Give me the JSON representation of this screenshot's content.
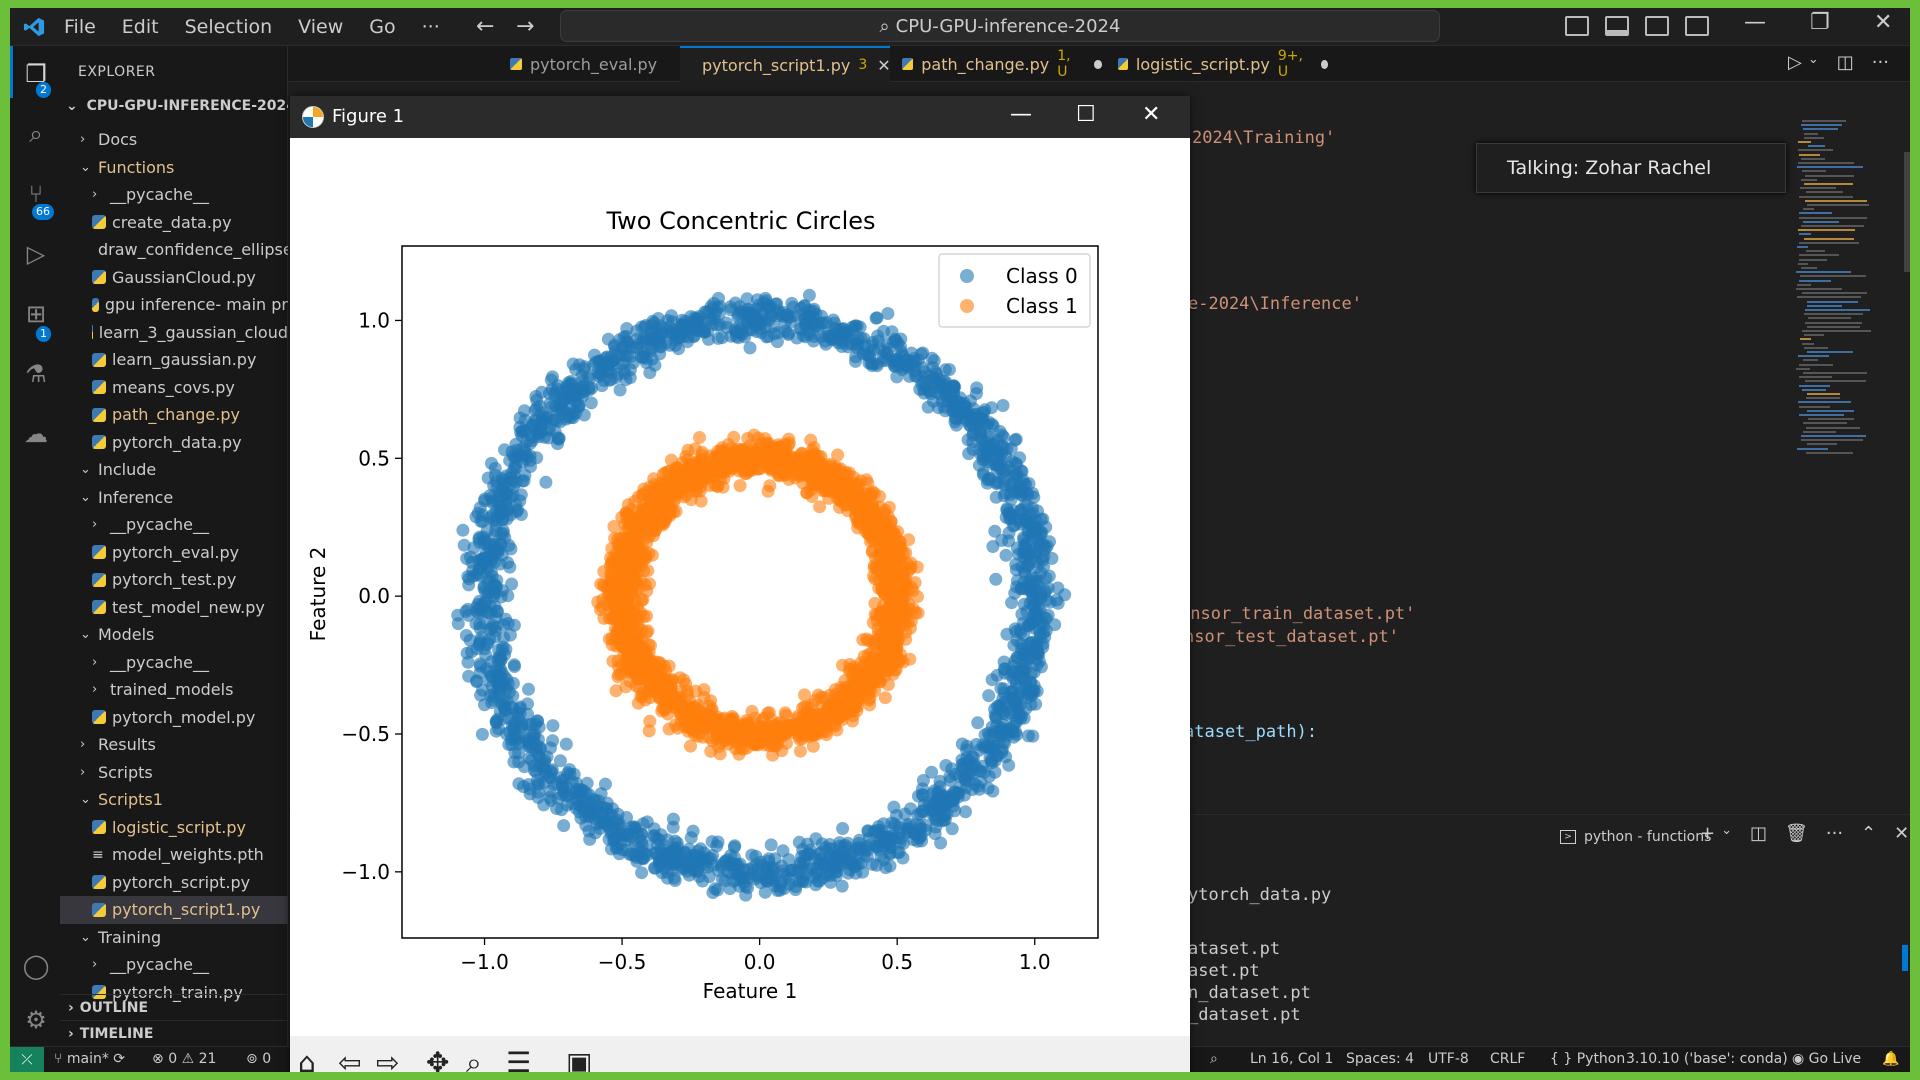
{
  "titlebar": {
    "menu": [
      "File",
      "Edit",
      "Selection",
      "View",
      "Go",
      "···"
    ],
    "search": "CPU-GPU-inference-2024"
  },
  "activity": {
    "explorer_badge": "2",
    "scm_badge": "66",
    "extensions_badge": "1"
  },
  "sidebar": {
    "header": "EXPLORER",
    "root": "CPU-GPU-INFERENCE-2024",
    "items": [
      {
        "label": "Docs",
        "depth": 0,
        "kind": "folder-closed"
      },
      {
        "label": "Functions",
        "depth": 0,
        "kind": "folder-open",
        "modified": true
      },
      {
        "label": "__pycache__",
        "depth": 1,
        "kind": "folder-closed"
      },
      {
        "label": "create_data.py",
        "depth": 1,
        "kind": "py"
      },
      {
        "label": "draw_confidence_ellipse",
        "depth": 1,
        "kind": "py"
      },
      {
        "label": "GaussianCloud.py",
        "depth": 1,
        "kind": "py"
      },
      {
        "label": "gpu inference- main pr",
        "depth": 1,
        "kind": "py"
      },
      {
        "label": "learn_3_gaussian_cloud",
        "depth": 1,
        "kind": "py"
      },
      {
        "label": "learn_gaussian.py",
        "depth": 1,
        "kind": "py"
      },
      {
        "label": "means_covs.py",
        "depth": 1,
        "kind": "py"
      },
      {
        "label": "path_change.py",
        "depth": 1,
        "kind": "py",
        "modified": true
      },
      {
        "label": "pytorch_data.py",
        "depth": 1,
        "kind": "py"
      },
      {
        "label": "Include",
        "depth": 0,
        "kind": "folder-open"
      },
      {
        "label": "Inference",
        "depth": 0,
        "kind": "folder-open"
      },
      {
        "label": "__pycache__",
        "depth": 1,
        "kind": "folder-closed"
      },
      {
        "label": "pytorch_eval.py",
        "depth": 1,
        "kind": "py"
      },
      {
        "label": "pytorch_test.py",
        "depth": 1,
        "kind": "py"
      },
      {
        "label": "test_model_new.py",
        "depth": 1,
        "kind": "py"
      },
      {
        "label": "Models",
        "depth": 0,
        "kind": "folder-open"
      },
      {
        "label": "__pycache__",
        "depth": 1,
        "kind": "folder-closed"
      },
      {
        "label": "trained_models",
        "depth": 1,
        "kind": "folder-closed"
      },
      {
        "label": "pytorch_model.py",
        "depth": 1,
        "kind": "py"
      },
      {
        "label": "Results",
        "depth": 0,
        "kind": "folder-closed"
      },
      {
        "label": "Scripts",
        "depth": 0,
        "kind": "folder-closed"
      },
      {
        "label": "Scripts1",
        "depth": 0,
        "kind": "folder-open",
        "modified": true
      },
      {
        "label": "logistic_script.py",
        "depth": 1,
        "kind": "py",
        "modified": true
      },
      {
        "label": "model_weights.pth",
        "depth": 1,
        "kind": "txt"
      },
      {
        "label": "pytorch_script.py",
        "depth": 1,
        "kind": "py"
      },
      {
        "label": "pytorch_script1.py",
        "depth": 1,
        "kind": "py",
        "modified": true,
        "selected": true
      },
      {
        "label": "Training",
        "depth": 0,
        "kind": "folder-open"
      },
      {
        "label": "__pycache__",
        "depth": 1,
        "kind": "folder-closed"
      },
      {
        "label": "pytorch_train.py",
        "depth": 1,
        "kind": "py"
      }
    ],
    "outline": "OUTLINE",
    "timeline": "TIMELINE"
  },
  "tabs": [
    {
      "label": "pytorch_eval.py",
      "extra": "",
      "active": false
    },
    {
      "label": "pytorch_script1.py",
      "extra": "3",
      "active": true
    },
    {
      "label": "path_change.py",
      "extra": "1, U",
      "active": false
    },
    {
      "label": "logistic_script.py",
      "extra": "9+, U",
      "active": false
    }
  ],
  "editor": {
    "lines": [
      {
        "text": "2024\\Training'",
        "cls": "str"
      },
      {
        "text": "e-2024\\Inference'",
        "cls": "str"
      },
      {
        "text": "ensor_train_dataset.pt'",
        "cls": "str"
      },
      {
        "text": "nsor_test_dataset.pt'",
        "cls": "str"
      },
      {
        "text": "ataset_path):",
        "cls": "var"
      }
    ],
    "talking": "Talking: Zohar Rachel"
  },
  "panel": {
    "title": "python - functions",
    "lines": [
      "ytorch_data.py",
      "ataset.pt",
      "aset.pt",
      "n_dataset.pt",
      "_dataset.pt"
    ]
  },
  "status": {
    "branch": "main*",
    "problems": "0",
    "warnings": "21",
    "ports": "0",
    "position": "Ln 16, Col 1",
    "spaces": "Spaces: 4",
    "encoding": "UTF-8",
    "eol": "CRLF",
    "language": "{ } Python",
    "interpreter": "3.10.10 ('base': conda)",
    "golive": "Go Live"
  },
  "figure": {
    "window_title": "Figure 1",
    "toolbar_icons": [
      "home-icon",
      "back-arrow-icon",
      "forward-arrow-icon",
      "pan-icon",
      "zoom-icon",
      "configure-icon",
      "save-icon"
    ]
  },
  "chart_data": {
    "type": "scatter",
    "title": "Two Concentric Circles",
    "xlabel": "Feature 1",
    "ylabel": "Feature 2",
    "xlim": [
      -1.3,
      1.23
    ],
    "ylim": [
      -1.24,
      1.27
    ],
    "xticks": [
      -1.0,
      -0.5,
      0.0,
      0.5,
      1.0
    ],
    "xtick_labels": [
      "−1.0",
      "−0.5",
      "0.0",
      "0.5",
      "1.0"
    ],
    "yticks": [
      -1.0,
      -0.5,
      0.0,
      0.5,
      1.0
    ],
    "ytick_labels": [
      "−1.0",
      "−0.5",
      "0.0",
      "0.5",
      "1.0"
    ],
    "legend_position": "top-right",
    "grid": false,
    "series": [
      {
        "name": "Class 0",
        "color": "#1f77b4",
        "radius_mean": 1.0,
        "radius_spread": 0.08,
        "points": 2200
      },
      {
        "name": "Class 1",
        "color": "#ff7f0e",
        "radius_mean": 0.5,
        "radius_spread": 0.07,
        "points": 2200
      }
    ]
  }
}
